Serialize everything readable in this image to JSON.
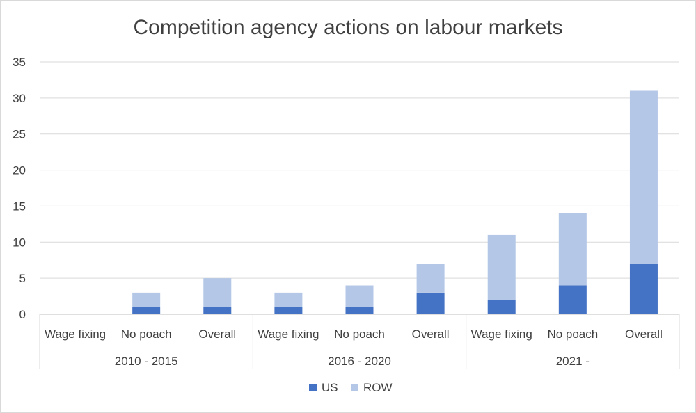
{
  "chart_data": {
    "type": "bar",
    "stacked": true,
    "title": "Competition agency actions on labour markets",
    "ylim": [
      0,
      35
    ],
    "yticks": [
      0,
      5,
      10,
      15,
      20,
      25,
      30,
      35
    ],
    "grid": true,
    "legend_position": "bottom",
    "groups": [
      {
        "label": "2010 - 2015",
        "categories": [
          "Wage fixing",
          "No poach",
          "Overall"
        ]
      },
      {
        "label": "2016 - 2020",
        "categories": [
          "Wage fixing",
          "No poach",
          "Overall"
        ]
      },
      {
        "label": "2021 -",
        "categories": [
          "Wage fixing",
          "No poach",
          "Overall"
        ]
      }
    ],
    "categories": [
      "Wage fixing",
      "No poach",
      "Overall",
      "Wage fixing",
      "No poach",
      "Overall",
      "Wage fixing",
      "No poach",
      "Overall"
    ],
    "series": [
      {
        "name": "US",
        "color": "#4472c4",
        "values": [
          0,
          1,
          1,
          1,
          1,
          3,
          2,
          4,
          7
        ]
      },
      {
        "name": "ROW",
        "color": "#b4c7e7",
        "values": [
          0,
          2,
          4,
          2,
          3,
          4,
          9,
          10,
          24
        ]
      }
    ]
  }
}
